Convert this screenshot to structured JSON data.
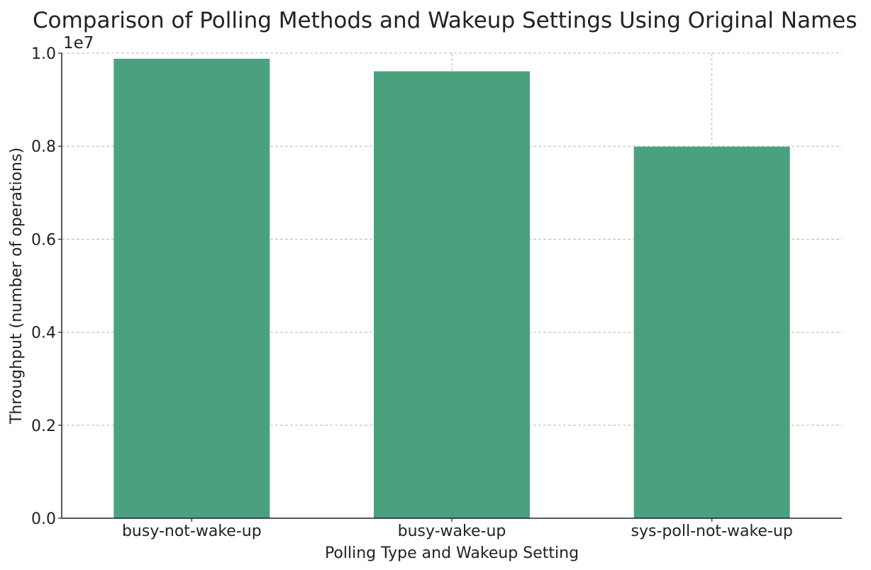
{
  "chart_data": {
    "type": "bar",
    "title": "Comparison of Polling Methods and Wakeup Settings Using Original Names",
    "xlabel": "Polling Type and Wakeup Setting",
    "ylabel": "Throughput (number of operations)",
    "categories": [
      "busy-not-wake-up",
      "busy-wake-up",
      "sys-poll-not-wake-up"
    ],
    "values": [
      9880000,
      9610000,
      7990000
    ],
    "y_ticks": [
      0,
      2000000,
      4000000,
      6000000,
      8000000,
      10000000
    ],
    "y_tick_labels": [
      "0.0",
      "0.2",
      "0.4",
      "0.6",
      "0.8",
      "1.0"
    ],
    "y_offset_label": "1e7",
    "ylim": [
      0,
      10000000
    ],
    "grid": true,
    "bar_color": "#4aa17e"
  }
}
